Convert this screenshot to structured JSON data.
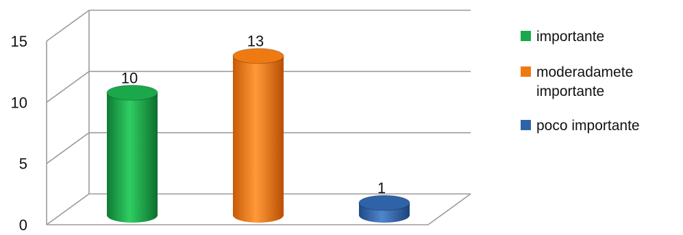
{
  "chart_data": {
    "type": "bar",
    "style": "3d-cylinder",
    "categories": [
      "importante",
      "moderadamete\nimportante",
      "poco importante"
    ],
    "values": [
      10,
      13,
      1
    ],
    "data_labels": [
      "10",
      "13",
      "1"
    ],
    "colors": [
      "#1aa84b",
      "#f07a12",
      "#2f63a8"
    ],
    "ylim": [
      0,
      15
    ],
    "yticks": [
      0,
      5,
      10,
      15
    ],
    "ytick_labels": [
      "0",
      "5",
      "10",
      "15"
    ],
    "grid": true,
    "legend_position": "right"
  }
}
